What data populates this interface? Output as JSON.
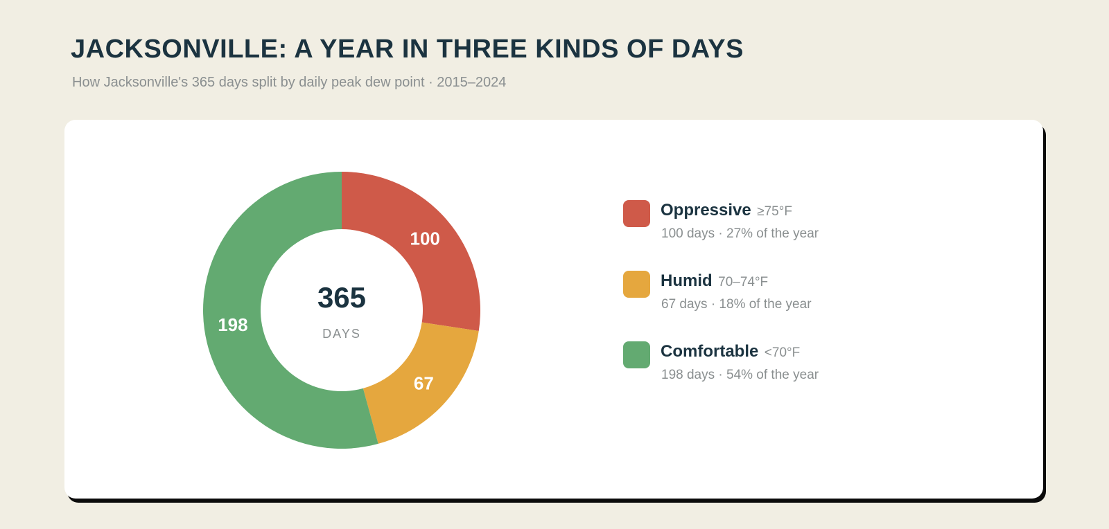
{
  "title": "JACKSONVILLE: A YEAR IN THREE KINDS OF DAYS",
  "subtitle": "How Jacksonville's 365 days split by daily peak dew point · 2015–2024",
  "center": {
    "value": "365",
    "label": "DAYS"
  },
  "chart_data": {
    "type": "pie",
    "donut": true,
    "title": "JACKSONVILLE: A YEAR IN THREE KINDS OF DAYS",
    "total": 365,
    "categories": [
      "Oppressive",
      "Humid",
      "Comfortable"
    ],
    "values": [
      100,
      67,
      198
    ],
    "colors": [
      "#cf5a49",
      "#e5a73e",
      "#63aa71"
    ],
    "slice_labels": [
      "100",
      "67",
      "198"
    ],
    "legend_placement": "right"
  },
  "legend": [
    {
      "name": "Oppressive",
      "range": "≥75°F",
      "detail": "100 days · 27% of the year",
      "color": "#cf5a49"
    },
    {
      "name": "Humid",
      "range": "70–74°F",
      "detail": "67 days · 18% of the year",
      "color": "#e5a73e"
    },
    {
      "name": "Comfortable",
      "range": "<70°F",
      "detail": "198 days · 54% of the year",
      "color": "#63aa71"
    }
  ]
}
